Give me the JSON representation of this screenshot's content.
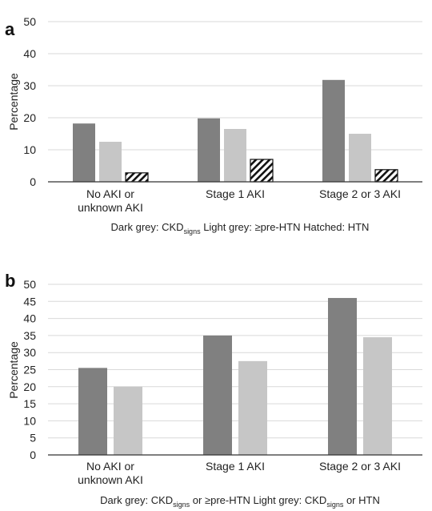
{
  "chart_data": [
    {
      "panel": "a",
      "type": "bar",
      "ylabel": "Percentage",
      "ylim": [
        0,
        50
      ],
      "yticks": [
        "0",
        "10",
        "20",
        "30",
        "40",
        "50"
      ],
      "grid": true,
      "categories": [
        [
          "No AKI or",
          "unknown AKI"
        ],
        [
          "Stage 1 AKI"
        ],
        [
          "Stage 2 or 3 AKI"
        ]
      ],
      "series": [
        {
          "fill": "dark",
          "color": "#808080",
          "values": [
            18.2,
            19.8,
            31.8
          ]
        },
        {
          "fill": "light",
          "color": "#c6c6c6",
          "values": [
            12.5,
            16.5,
            15.0
          ]
        },
        {
          "fill": "hatched",
          "color": "#ffffff",
          "values": [
            2.8,
            7.0,
            3.8
          ]
        }
      ],
      "legend_note": {
        "p1": "Dark grey: CKD",
        "p1_sub": "signs",
        "p2": " Light grey: ≥pre-HTN Hatched: HTN"
      }
    },
    {
      "panel": "b",
      "type": "bar",
      "ylabel": "Percentage",
      "ylim": [
        0,
        50
      ],
      "yticks": [
        "0",
        "5",
        "10",
        "15",
        "20",
        "25",
        "30",
        "35",
        "40",
        "45",
        "50"
      ],
      "grid": true,
      "categories": [
        [
          "No AKI or",
          "unknown AKI"
        ],
        [
          "Stage 1 AKI"
        ],
        [
          "Stage 2 or 3 AKI"
        ]
      ],
      "series": [
        {
          "fill": "dark",
          "color": "#808080",
          "values": [
            25.5,
            35.0,
            46.0
          ]
        },
        {
          "fill": "light",
          "color": "#c6c6c6",
          "values": [
            20.0,
            27.5,
            34.5
          ]
        }
      ],
      "legend_note": {
        "p1": "Dark grey: CKD",
        "p1_sub": "signs",
        "p2": " or ≥pre-HTN Light grey: CKD",
        "p2_sub": "signs",
        "p3": " or HTN"
      }
    }
  ]
}
